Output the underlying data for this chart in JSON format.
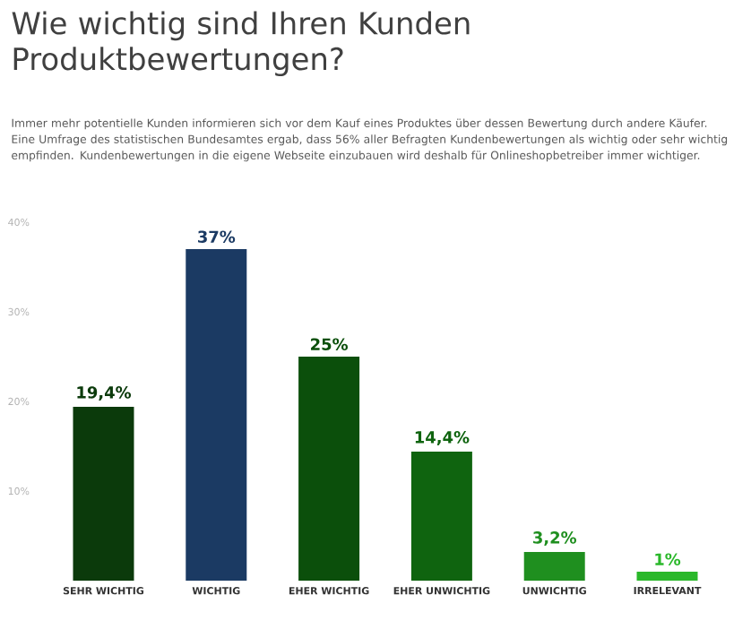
{
  "chart_data": {
    "type": "bar",
    "title": "Wie wichtig sind Ihren Kunden Produktbewertungen?",
    "subtitle": "Immer mehr potentielle Kunden informieren sich vor dem Kauf eines Produktes über dessen Bewertung durch andere Käufer. Eine Umfrage des statistischen Bundesamtes ergab, dass 56% aller Befragten Kundenbewertungen als wichtig oder sehr wichtig empfinden. Kundenbewertungen in die eigene Webseite einzubauen wird deshalb für Onlineshopbetreiber immer wichtiger.",
    "categories": [
      "SEHR WICHTIG",
      "WICHTIG",
      "EHER WICHTIG",
      "EHER UNWICHTIG",
      "UNWICHTIG",
      "IRRELEVANT"
    ],
    "values": [
      19.4,
      37,
      25,
      14.4,
      3.2,
      1
    ],
    "value_labels": [
      "19,4%",
      "37%",
      "25%",
      "14,4%",
      "3,2%",
      "1%"
    ],
    "colors": [
      "#0b3a0b",
      "#1b3a63",
      "#0b4f0b",
      "#0f640f",
      "#1f8f1f",
      "#2ab82a"
    ],
    "ylim": [
      0,
      40
    ],
    "yticks": [
      {
        "value": 10,
        "label": "10%"
      },
      {
        "value": 20,
        "label": "20%"
      },
      {
        "value": 30,
        "label": "30%"
      },
      {
        "value": 40,
        "label": "40%"
      }
    ]
  }
}
